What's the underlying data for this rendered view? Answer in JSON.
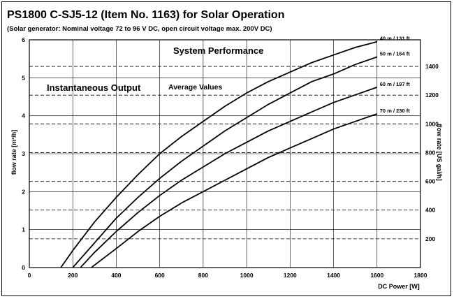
{
  "header": {
    "title": "PS1800 C-SJ5-12 (Item No. 1163) for Solar Operation",
    "subtitle": "(Solar generator: Nominal voltage  72  to 96 V DC, open circuit voltage max. 200V DC)"
  },
  "annotations": {
    "system_performance": "System Performance",
    "instantaneous_output": "Instantaneous Output",
    "average_values": "Average Values"
  },
  "chart_data": {
    "type": "line",
    "title": "PS1800 C-SJ5-12 (Item No. 1163) for Solar Operation",
    "xlabel": "DC Power [W]",
    "ylabel": "flow rate [m³/h]",
    "y2label": "flow rate [US gal/h]",
    "xlim": [
      0,
      1800
    ],
    "ylim": [
      0,
      6
    ],
    "y2lim": [
      0,
      1585
    ],
    "xticks": [
      0,
      200,
      400,
      600,
      800,
      1000,
      1200,
      1400,
      1600,
      1800
    ],
    "yticks": [
      0,
      1,
      2,
      3,
      4,
      5,
      6
    ],
    "y2ticks": [
      200,
      400,
      600,
      800,
      1000,
      1200,
      1400
    ],
    "grid": true,
    "series": [
      {
        "name": "40 m / 131 ft",
        "x": [
          145,
          200,
          300,
          400,
          500,
          600,
          700,
          800,
          900,
          1000,
          1100,
          1200,
          1300,
          1400,
          1500,
          1600
        ],
        "y": [
          0,
          0.45,
          1.2,
          1.85,
          2.45,
          3.0,
          3.45,
          3.85,
          4.25,
          4.6,
          4.9,
          5.15,
          5.4,
          5.6,
          5.8,
          5.95
        ]
      },
      {
        "name": "50 m / 164 ft",
        "x": [
          200,
          300,
          400,
          500,
          600,
          700,
          800,
          900,
          1000,
          1100,
          1200,
          1300,
          1400,
          1500,
          1600
        ],
        "y": [
          0,
          0.65,
          1.3,
          1.85,
          2.35,
          2.8,
          3.2,
          3.6,
          3.95,
          4.3,
          4.6,
          4.9,
          5.1,
          5.35,
          5.55
        ]
      },
      {
        "name": "60 m / 197 ft",
        "x": [
          235,
          300,
          400,
          500,
          600,
          700,
          800,
          900,
          1000,
          1100,
          1200,
          1300,
          1400,
          1500,
          1600
        ],
        "y": [
          0,
          0.4,
          0.95,
          1.45,
          1.9,
          2.3,
          2.65,
          3.0,
          3.3,
          3.6,
          3.85,
          4.1,
          4.35,
          4.55,
          4.75
        ]
      },
      {
        "name": "70 m / 230 ft",
        "x": [
          285,
          400,
          500,
          600,
          700,
          800,
          900,
          1000,
          1100,
          1200,
          1300,
          1400,
          1500,
          1600
        ],
        "y": [
          0,
          0.5,
          0.95,
          1.35,
          1.7,
          2.0,
          2.3,
          2.6,
          2.9,
          3.15,
          3.4,
          3.65,
          3.85,
          4.05
        ]
      }
    ]
  }
}
